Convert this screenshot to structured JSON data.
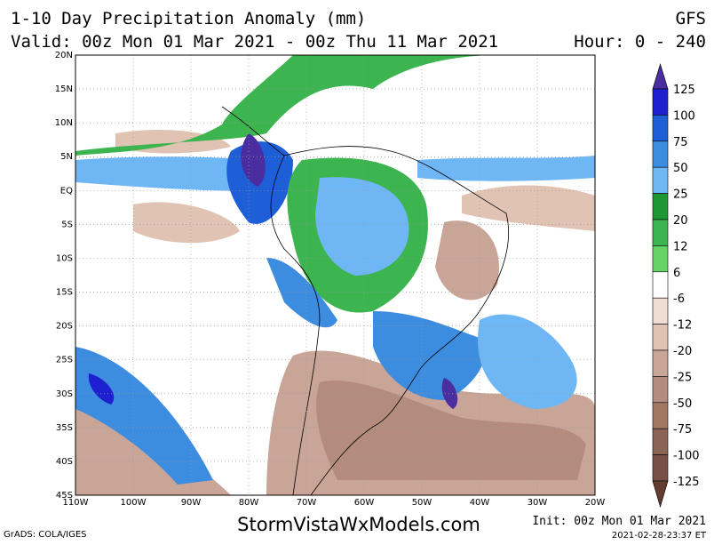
{
  "header": {
    "title": "1-10 Day Precipitation Anomaly (mm)",
    "model": "GFS",
    "valid": "Valid: 00z Mon 01 Mar 2021 - 00z Thu 11 Mar 2021",
    "hour": "Hour: 0 - 240"
  },
  "map": {
    "lat_labels": [
      "20N",
      "15N",
      "10N",
      "5N",
      "EQ",
      "5S",
      "10S",
      "15S",
      "20S",
      "25S",
      "30S",
      "35S",
      "40S",
      "45S"
    ],
    "lon_labels": [
      "110W",
      "100W",
      "90W",
      "80W",
      "70W",
      "60W",
      "50W",
      "40W",
      "30W",
      "20W"
    ]
  },
  "legend": {
    "labels": [
      "125",
      "100",
      "75",
      "50",
      "25",
      "20",
      "12",
      "6",
      "-6",
      "-12",
      "-20",
      "-25",
      "-50",
      "-75",
      "-100",
      "-125"
    ],
    "colors": [
      "#4a2ea0",
      "#1f1fd2",
      "#1e5fd8",
      "#3c8ce0",
      "#6fb6f5",
      "#1e9632",
      "#3cb450",
      "#64d264",
      "#ffffff",
      "#f0dcd2",
      "#e1c3b4",
      "#c8a596",
      "#b48c7d",
      "#a07864",
      "#8c6455",
      "#785046",
      "#643c32"
    ]
  },
  "footer": {
    "site": "StormVistaWxModels.com",
    "credit": "GrADS: COLA/IGES",
    "init": "Init: 00z Mon 01 Mar 2021",
    "timestamp": "2021-02-28-23:37 ET"
  }
}
